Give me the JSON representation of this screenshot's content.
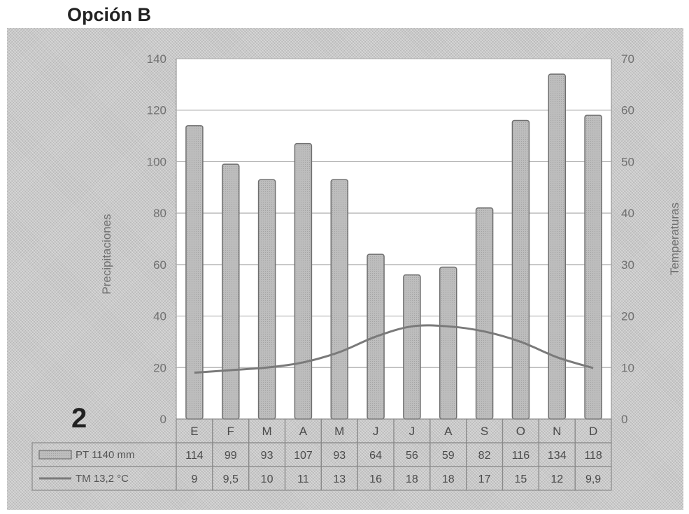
{
  "heading": "Opción B",
  "panel_number": "2",
  "chart_data": {
    "type": "bar",
    "categories": [
      "E",
      "F",
      "M",
      "A",
      "M",
      "J",
      "J",
      "A",
      "S",
      "O",
      "N",
      "D"
    ],
    "series": [
      {
        "name": "PT 1140 mm",
        "type": "bar",
        "axis": "left",
        "values": [
          114,
          99,
          93,
          107,
          93,
          64,
          56,
          59,
          82,
          116,
          134,
          118
        ],
        "table_labels": [
          "114",
          "99",
          "93",
          "107",
          "93",
          "64",
          "56",
          "59",
          "82",
          "116",
          "134",
          "118"
        ]
      },
      {
        "name": "TM 13,2 °C",
        "type": "line",
        "axis": "right",
        "values": [
          9,
          9.5,
          10,
          11,
          13,
          16,
          18,
          18,
          17,
          15,
          12,
          9.9
        ],
        "table_labels": [
          "9",
          "9,5",
          "10",
          "11",
          "13",
          "16",
          "18",
          "18",
          "17",
          "15",
          "12",
          "9,9"
        ]
      }
    ],
    "ylabel": "Precipitaciones",
    "y2label": "Temperaturas",
    "ylim": [
      0,
      140
    ],
    "y2lim": [
      0,
      70
    ],
    "yticks": [
      0,
      20,
      40,
      60,
      80,
      100,
      120,
      140
    ],
    "y2ticks": [
      0,
      10,
      20,
      30,
      40,
      50,
      60,
      70
    ],
    "grid": true,
    "legend": "table-bottom-left",
    "colors": {
      "bar": "#bdbdbd",
      "line": "#7a7a7a",
      "plot_bg": "#ffffff",
      "grid": "#b0b0b0"
    }
  }
}
